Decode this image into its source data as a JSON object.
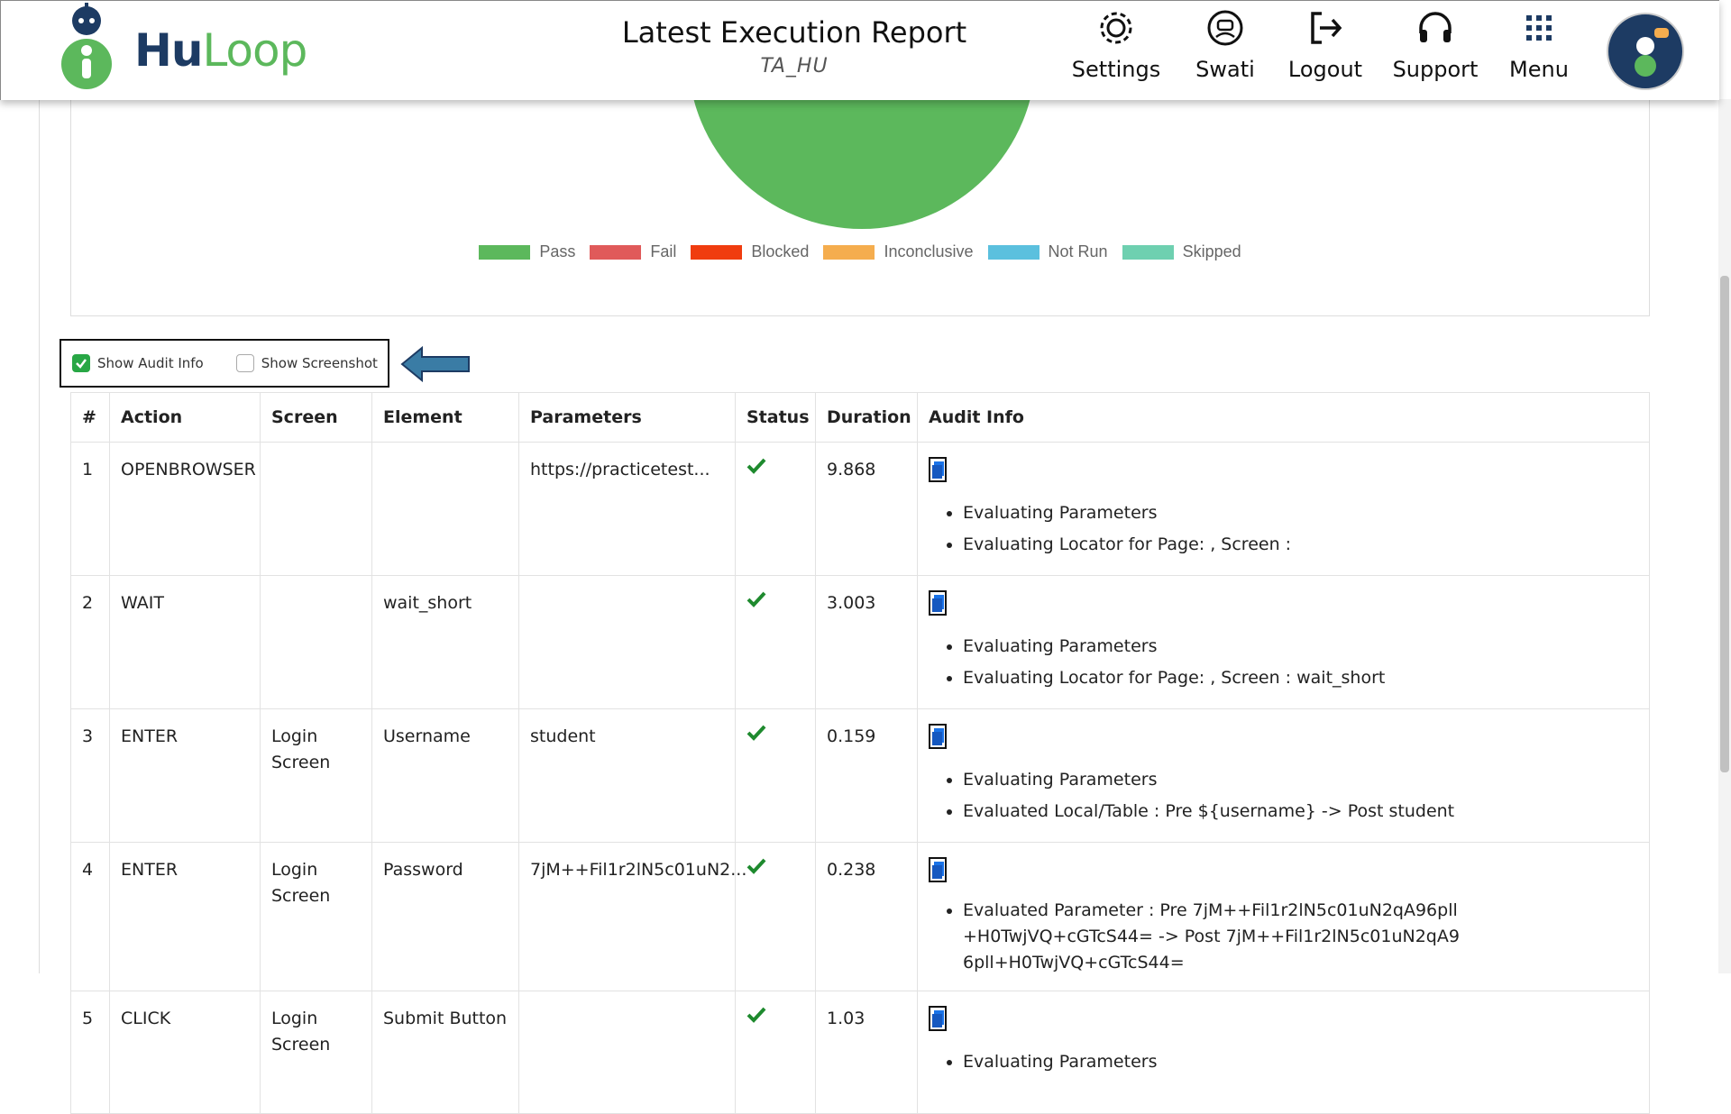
{
  "header": {
    "brand": [
      "Hu",
      "Loop"
    ],
    "title": "Latest Execution Report",
    "subtitle": "TA_HU",
    "nav": [
      "Settings",
      "Swati",
      "Logout",
      "Support",
      "Menu"
    ]
  },
  "chart_legend": [
    {
      "label": "Pass",
      "color": "#5cb85c"
    },
    {
      "label": "Fail",
      "color": "#e05a5a"
    },
    {
      "label": "Blocked",
      "color": "#f03c0f"
    },
    {
      "label": "Inconclusive",
      "color": "#f5ad4e"
    },
    {
      "label": "Not Run",
      "color": "#5bc0de"
    },
    {
      "label": "Skipped",
      "color": "#6ed0b0"
    }
  ],
  "options": [
    {
      "label": "Show Audit Info",
      "checked": true
    },
    {
      "label": "Show Screenshot",
      "checked": false
    }
  ],
  "table": {
    "columns": [
      "#",
      "Action",
      "Screen",
      "Element",
      "Parameters",
      "Status",
      "Duration",
      "Audit Info"
    ],
    "rows": [
      {
        "num": "1",
        "action": "OPENBROWSER",
        "parameters": "https://practicetest...",
        "duration": "9.868",
        "audit": [
          "Evaluating Parameters",
          "Evaluating Locator for Page: , Screen :"
        ]
      },
      {
        "num": "2",
        "action": "WAIT",
        "element": "wait_short",
        "duration": "3.003",
        "audit": [
          "Evaluating Parameters",
          "Evaluating Locator for Page: , Screen : wait_short"
        ]
      },
      {
        "num": "3",
        "action": "ENTER",
        "screen": "Login Screen",
        "element": "Username",
        "parameters": "student",
        "duration": "0.159",
        "audit": [
          "Evaluating Parameters",
          "Evaluated Local/Table : Pre ${username} -> Post student"
        ]
      },
      {
        "num": "4",
        "action": "ENTER",
        "screen": "Login Screen",
        "element": "Password",
        "parameters": "7jM++Fil1r2lN5c01uN2...",
        "duration": "0.238",
        "audit": [
          "Evaluated Parameter : Pre 7jM++Fil1r2lN5c01uN2qA96pll+H0TwjVQ+cGTcS44= -> Post 7jM++Fil1r2lN5c01uN2qA96pll+H0TwjVQ+cGTcS44="
        ]
      },
      {
        "num": "5",
        "action": "CLICK",
        "screen": "Login Screen",
        "element": "Submit Button",
        "duration": "1.03",
        "audit": [
          "Evaluating Parameters"
        ]
      }
    ]
  }
}
